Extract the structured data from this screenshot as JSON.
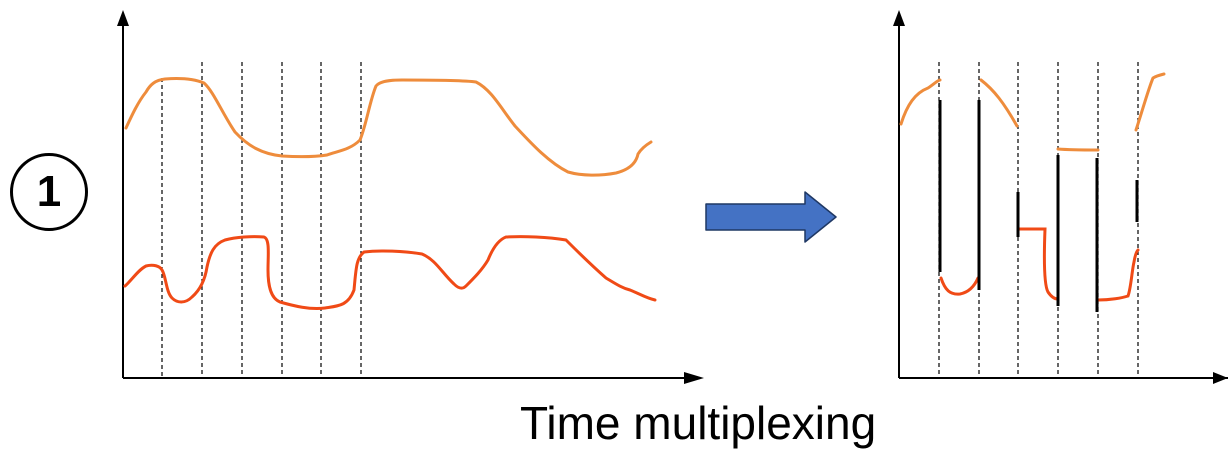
{
  "step_badge": {
    "label": "1"
  },
  "caption": {
    "text": "Time multiplexing"
  },
  "colors": {
    "signal_top": "#EE8C3C",
    "signal_bottom": "#F04A16",
    "arrow_fill": "#4472C4",
    "arrow_stroke": "#1F3864",
    "axis": "#000000",
    "time_slot_divider": "#000000"
  },
  "icons": {
    "arrow": "right-block-arrow-icon"
  }
}
